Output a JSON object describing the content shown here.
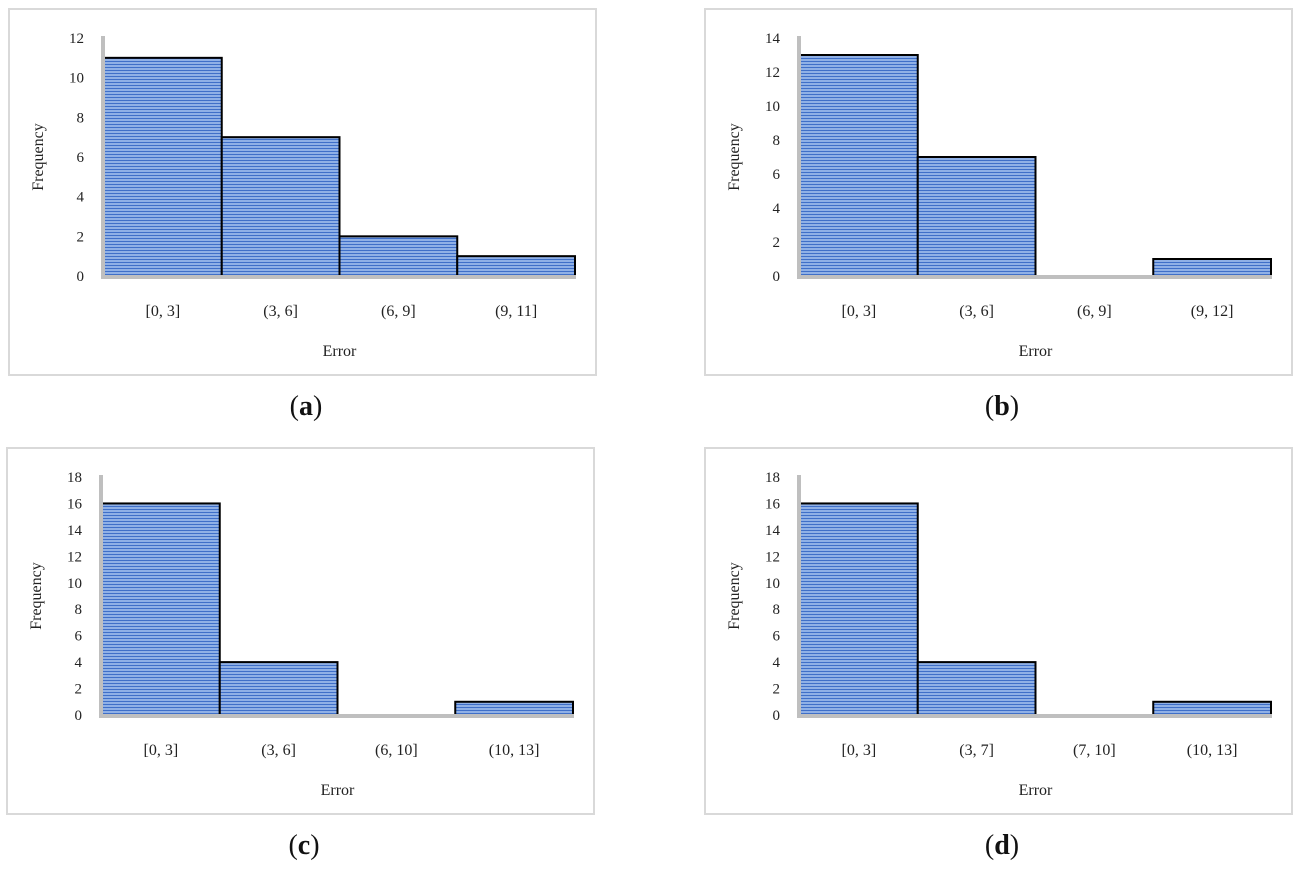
{
  "chart_data": [
    {
      "type": "bar",
      "caption_letter": "a",
      "categories": [
        "[0, 3]",
        "(3, 6]",
        "(6, 9]",
        "(9, 11]"
      ],
      "values": [
        11,
        7,
        2,
        1
      ],
      "xlabel": "Error",
      "ylabel": "Frequency",
      "ylim": [
        0,
        12
      ],
      "yticks": [
        0,
        2,
        4,
        6,
        8,
        10,
        12
      ]
    },
    {
      "type": "bar",
      "caption_letter": "b",
      "categories": [
        "[0, 3]",
        "(3, 6]",
        "(6, 9]",
        "(9, 12]"
      ],
      "values": [
        13,
        7,
        0,
        1
      ],
      "xlabel": "Error",
      "ylabel": "Frequency",
      "ylim": [
        0,
        14
      ],
      "yticks": [
        0,
        2,
        4,
        6,
        8,
        10,
        12,
        14
      ]
    },
    {
      "type": "bar",
      "caption_letter": "c",
      "categories": [
        "[0, 3]",
        "(3, 6]",
        "(6, 10]",
        "(10, 13]"
      ],
      "values": [
        16,
        4,
        0,
        1
      ],
      "xlabel": "Error",
      "ylabel": "Frequency",
      "ylim": [
        0,
        18
      ],
      "yticks": [
        0,
        2,
        4,
        6,
        8,
        10,
        12,
        14,
        16,
        18
      ]
    },
    {
      "type": "bar",
      "caption_letter": "d",
      "categories": [
        "[0, 3]",
        "(3, 7]",
        "(7, 10]",
        "(10, 13]"
      ],
      "values": [
        16,
        4,
        0,
        1
      ],
      "xlabel": "Error",
      "ylabel": "Frequency",
      "ylim": [
        0,
        18
      ],
      "yticks": [
        0,
        2,
        4,
        6,
        8,
        10,
        12,
        14,
        16,
        18
      ]
    }
  ],
  "colors": {
    "bar_fill": "#8fb0e6",
    "bar_stripe": "#3f6fc8",
    "bar_edge": "#000000",
    "axis": "#bfbfbf",
    "frame": "#d9d9d9"
  }
}
